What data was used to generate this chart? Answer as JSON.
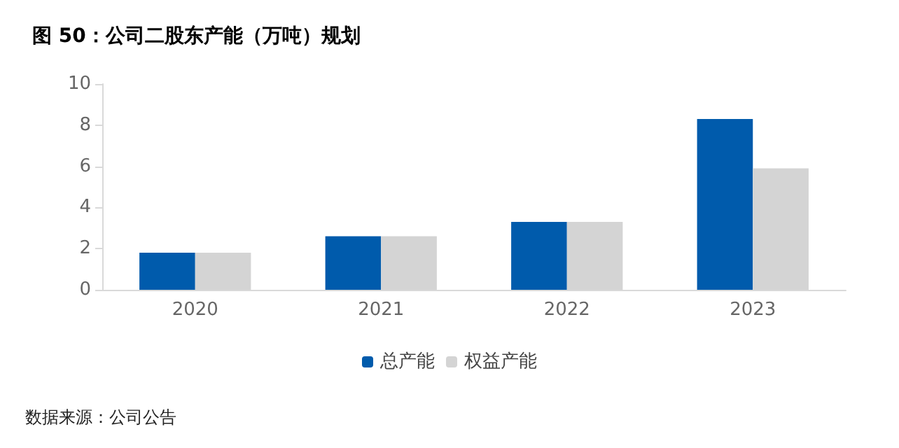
{
  "chart_data": {
    "type": "bar",
    "title": "图 50：公司二股东产能（万吨）规划",
    "categories": [
      "2020",
      "2021",
      "2022",
      "2023"
    ],
    "series": [
      {
        "name": "总产能",
        "color": "#005bac",
        "values": [
          1.8,
          2.6,
          3.3,
          8.3
        ]
      },
      {
        "name": "权益产能",
        "color": "#d4d4d4",
        "values": [
          1.8,
          2.6,
          3.3,
          5.9
        ]
      }
    ],
    "ylim": [
      0,
      10
    ],
    "yticks": [
      0,
      2,
      4,
      6,
      8,
      10
    ],
    "grid": false,
    "legend": "bottom",
    "annotations": [
      "数据来源：公司公告"
    ]
  }
}
